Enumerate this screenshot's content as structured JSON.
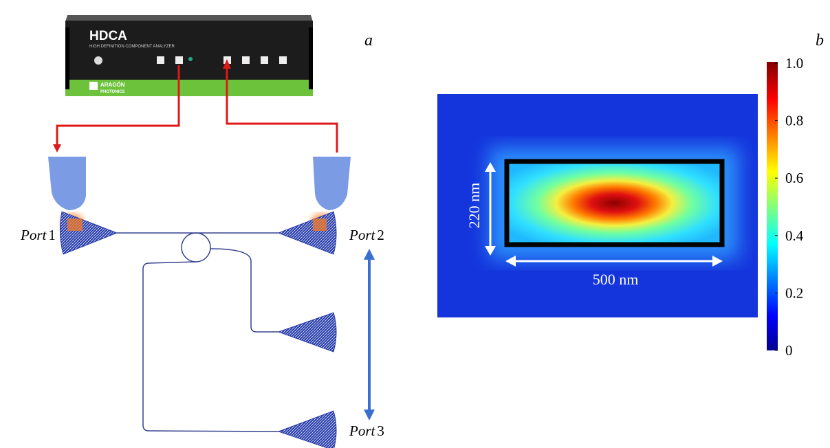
{
  "panel_labels": {
    "a": "a",
    "b": "b"
  },
  "device": {
    "title": "HDCA",
    "subtitle": "HIGH DEFINITION COMPONENT ANALYZER",
    "brand_top": "ARAGÓN",
    "brand_bottom": "PHOTONICS"
  },
  "ports": [
    {
      "word": "Port",
      "number": "1"
    },
    {
      "word": "Port",
      "number": "2"
    },
    {
      "word": "Port",
      "number": "3"
    }
  ],
  "dimensions": {
    "height": "220 nm",
    "width": "500 nm"
  },
  "colorbar": {
    "lim": [
      0,
      1
    ],
    "ticks": [
      {
        "value": 1,
        "label": "1.0"
      },
      {
        "value": 0.8,
        "label": "0.8"
      },
      {
        "value": 0.6,
        "label": "0.6"
      },
      {
        "value": 0.4,
        "label": "0.4"
      },
      {
        "value": 0.2,
        "label": "0.2"
      },
      0
    ]
  }
}
